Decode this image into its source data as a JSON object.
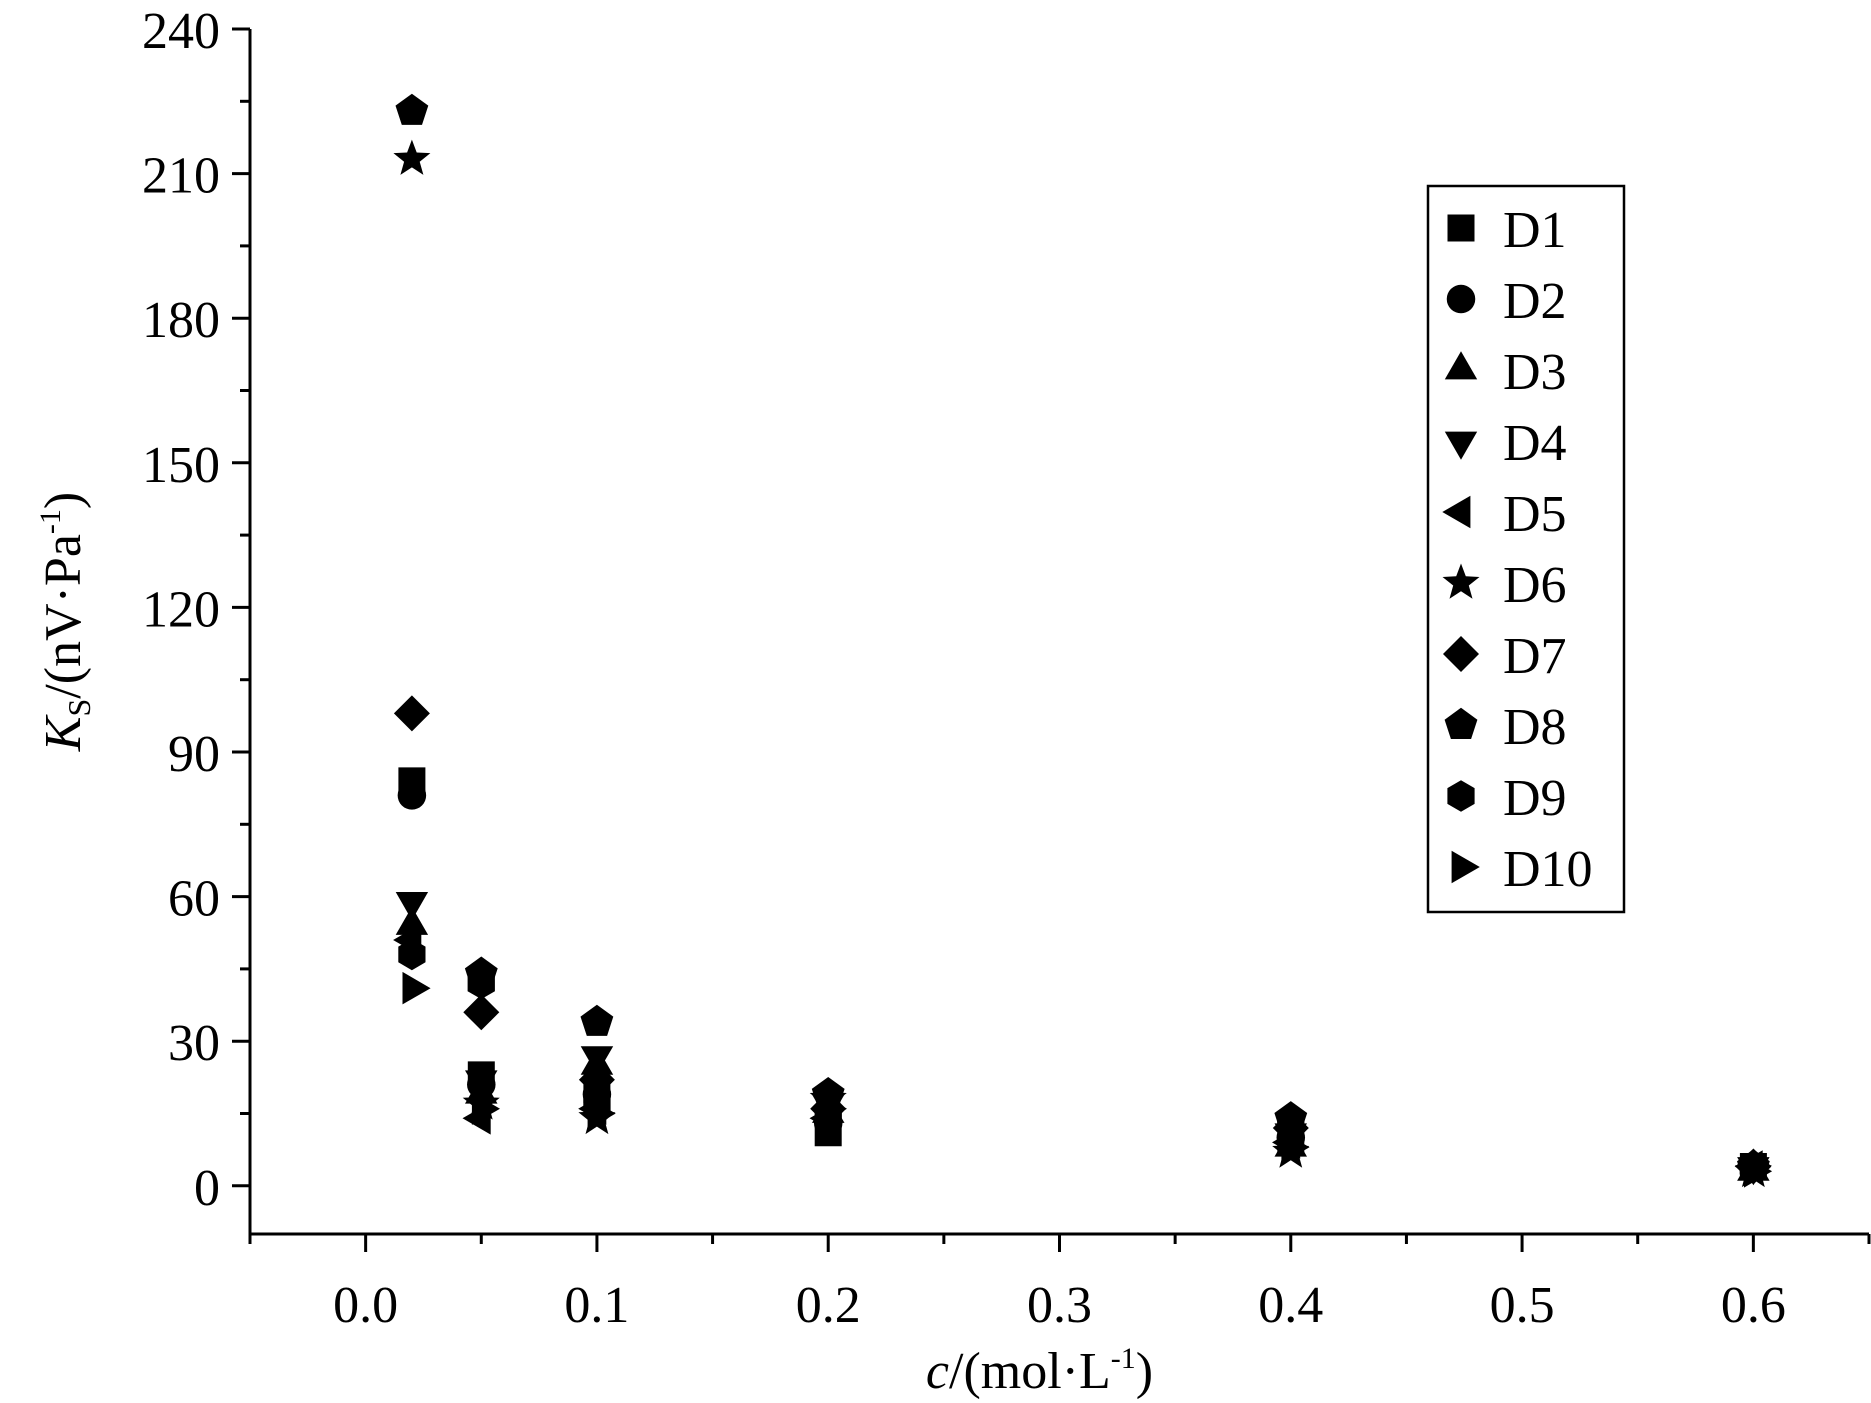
{
  "chart_data": {
    "type": "scatter",
    "title": "",
    "xlabel": {
      "italic": "c",
      "rest": "/(mol·L",
      "sup": "-1",
      "close": ")"
    },
    "ylabel": {
      "italic": "K",
      "sub": "S",
      "rest": "/(nV·Pa",
      "sup": "-1",
      "close": ")"
    },
    "xlim": [
      -0.05,
      0.65
    ],
    "ylim": [
      -10,
      240
    ],
    "xticks": [
      0.0,
      0.1,
      0.2,
      0.3,
      0.4,
      0.5,
      0.6
    ],
    "xtick_labels": [
      "0.0",
      "0.1",
      "0.2",
      "0.3",
      "0.4",
      "0.5",
      "0.6"
    ],
    "xminor": [
      -0.05,
      0.05,
      0.15,
      0.25,
      0.35,
      0.45,
      0.55,
      0.65
    ],
    "yticks": [
      0,
      30,
      60,
      90,
      120,
      150,
      180,
      210,
      240
    ],
    "ytick_labels": [
      "0",
      "30",
      "60",
      "90",
      "120",
      "150",
      "180",
      "210",
      "240"
    ],
    "grid": false,
    "legend_position": "top-right",
    "series": [
      {
        "name": "D1",
        "marker": "square",
        "x": [
          0.02,
          0.05,
          0.1,
          0.2,
          0.4,
          0.6
        ],
        "y": [
          84,
          23,
          20,
          11,
          9,
          4
        ]
      },
      {
        "name": "D2",
        "marker": "circle",
        "x": [
          0.02,
          0.05,
          0.1,
          0.2,
          0.4,
          0.6
        ],
        "y": [
          81,
          21,
          19,
          13,
          10,
          4
        ]
      },
      {
        "name": "D3",
        "marker": "triangle-up",
        "x": [
          0.02,
          0.05,
          0.1,
          0.2,
          0.4,
          0.6
        ],
        "y": [
          54,
          19,
          25,
          15,
          8,
          3
        ]
      },
      {
        "name": "D4",
        "marker": "triangle-down",
        "x": [
          0.02,
          0.05,
          0.1,
          0.2,
          0.4,
          0.6
        ],
        "y": [
          59,
          22,
          27,
          17,
          11,
          4
        ]
      },
      {
        "name": "D5",
        "marker": "triangle-left",
        "x": [
          0.02,
          0.05,
          0.1,
          0.2,
          0.4,
          0.6
        ],
        "y": [
          51,
          14,
          16,
          14,
          9,
          4
        ]
      },
      {
        "name": "D6",
        "marker": "star",
        "x": [
          0.02,
          0.05,
          0.1,
          0.2,
          0.4,
          0.6
        ],
        "y": [
          213,
          17,
          14,
          18,
          7,
          3
        ]
      },
      {
        "name": "D7",
        "marker": "diamond",
        "x": [
          0.02,
          0.05,
          0.1,
          0.2,
          0.4,
          0.6
        ],
        "y": [
          98,
          36,
          22,
          16,
          12,
          4
        ]
      },
      {
        "name": "D8",
        "marker": "pentagon",
        "x": [
          0.02,
          0.05,
          0.1,
          0.2,
          0.4,
          0.6
        ],
        "y": [
          223,
          44,
          34,
          19,
          14,
          4
        ]
      },
      {
        "name": "D9",
        "marker": "hexagon",
        "x": [
          0.02,
          0.05,
          0.1,
          0.2,
          0.4,
          0.6
        ],
        "y": [
          48,
          42,
          17,
          15,
          13,
          4
        ]
      },
      {
        "name": "D10",
        "marker": "triangle-right",
        "x": [
          0.02,
          0.05,
          0.1,
          0.2,
          0.4,
          0.6
        ],
        "y": [
          41,
          16,
          15,
          16,
          8,
          3
        ]
      }
    ]
  }
}
